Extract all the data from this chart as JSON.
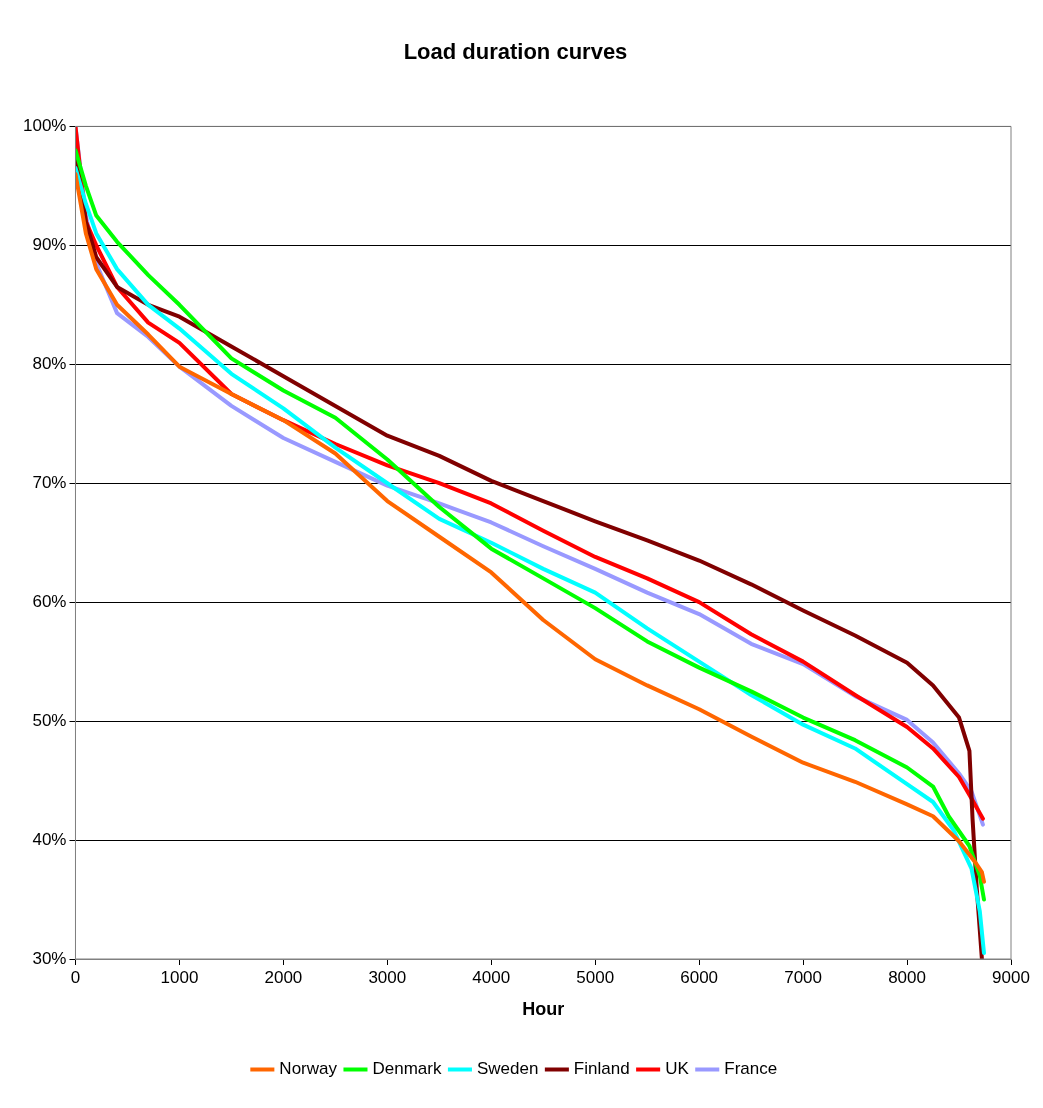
{
  "chart_data": {
    "type": "line",
    "title": "Load duration curves",
    "xlabel": "Hour",
    "xlim": [
      0,
      9000
    ],
    "xticks": [
      0,
      1000,
      2000,
      3000,
      4000,
      5000,
      6000,
      7000,
      8000,
      9000
    ],
    "ylim": [
      30,
      100
    ],
    "yticks": [
      {
        "value": 30,
        "label": "30%"
      },
      {
        "value": 40,
        "label": "40%"
      },
      {
        "value": 50,
        "label": "50%"
      },
      {
        "value": 60,
        "label": "60%"
      },
      {
        "value": 70,
        "label": "70%"
      },
      {
        "value": 80,
        "label": "80%"
      },
      {
        "value": 90,
        "label": "90%"
      },
      {
        "value": 100,
        "label": "100%"
      }
    ],
    "grid": "y",
    "legend": "bottom",
    "marker": "none",
    "line_style": "solid",
    "series": [
      {
        "name": "Norway",
        "color": "#ff6600",
        "x": [
          0,
          100,
          200,
          400,
          700,
          1000,
          1500,
          2000,
          2500,
          3000,
          3500,
          4000,
          4500,
          5000,
          5500,
          6000,
          6500,
          7000,
          7500,
          8000,
          8250,
          8500,
          8650,
          8720,
          8740
        ],
        "values": [
          96,
          91,
          88,
          85,
          82.5,
          79.8,
          77.5,
          75.3,
          72.5,
          68.5,
          65.5,
          62.5,
          58.5,
          55.2,
          53,
          51,
          48.7,
          46.5,
          44.9,
          43,
          42,
          39.9,
          38.2,
          37.3,
          36.5
        ]
      },
      {
        "name": "Denmark",
        "color": "#00ff00",
        "x": [
          0,
          100,
          200,
          400,
          700,
          1000,
          1500,
          2000,
          2500,
          3000,
          3500,
          4000,
          4500,
          5000,
          5500,
          6000,
          6500,
          7000,
          7500,
          8000,
          8250,
          8400,
          8600,
          8700,
          8740
        ],
        "values": [
          98,
          95,
          92.5,
          90.3,
          87.5,
          85,
          80.5,
          77.8,
          75.5,
          72,
          68,
          64.5,
          62,
          59.5,
          56.7,
          54.5,
          52.5,
          50.3,
          48.4,
          46.1,
          44.5,
          42,
          39.5,
          37,
          35
        ]
      },
      {
        "name": "Sweden",
        "color": "#00ffff",
        "x": [
          0,
          100,
          200,
          400,
          700,
          1000,
          1500,
          2000,
          2500,
          3000,
          3500,
          4000,
          4500,
          5000,
          5500,
          6000,
          6500,
          7000,
          7500,
          8000,
          8250,
          8450,
          8620,
          8700,
          8740
        ],
        "values": [
          96.5,
          93.5,
          91,
          88,
          85,
          83,
          79.2,
          76.3,
          73,
          70,
          67,
          65,
          62.8,
          60.8,
          57.8,
          55,
          52.2,
          49.7,
          47.7,
          44.7,
          43.2,
          40.8,
          37.6,
          34,
          30.5
        ]
      },
      {
        "name": "Finland",
        "color": "#800000",
        "x": [
          0,
          100,
          200,
          400,
          700,
          1000,
          1500,
          2000,
          2500,
          3000,
          3500,
          4000,
          4500,
          5000,
          5500,
          6000,
          6500,
          7000,
          7500,
          8000,
          8250,
          8500,
          8600,
          8630,
          8670,
          8720
        ],
        "values": [
          98,
          92,
          89,
          86.5,
          85,
          84,
          81.5,
          79,
          76.5,
          74,
          72.3,
          70.2,
          68.5,
          66.8,
          65.2,
          63.5,
          61.5,
          59.3,
          57.2,
          54.9,
          53,
          50.3,
          47.5,
          41.8,
          36,
          30
        ]
      },
      {
        "name": "UK",
        "color": "#ff0000",
        "x": [
          0,
          100,
          200,
          400,
          700,
          1000,
          1500,
          2000,
          2500,
          3000,
          3500,
          4000,
          4500,
          5000,
          5500,
          6000,
          6500,
          7000,
          7500,
          8000,
          8250,
          8500,
          8620,
          8730
        ],
        "values": [
          100,
          92,
          90,
          86.5,
          83.5,
          81.8,
          77.5,
          75.3,
          73.3,
          71.5,
          70,
          68.3,
          66,
          63.8,
          62,
          60,
          57.3,
          55,
          52.2,
          49.5,
          47.7,
          45.3,
          43.5,
          41.8
        ]
      },
      {
        "name": "France",
        "color": "#9999ff",
        "x": [
          0,
          100,
          200,
          400,
          700,
          1000,
          1500,
          2000,
          2500,
          3000,
          3500,
          4000,
          4500,
          5000,
          5500,
          6000,
          6500,
          7000,
          7500,
          8000,
          8250,
          8500,
          8620,
          8730
        ],
        "values": [
          100,
          92.5,
          88.5,
          84.3,
          82.3,
          79.8,
          76.5,
          73.8,
          71.8,
          69.8,
          68.3,
          66.7,
          64.7,
          62.8,
          60.8,
          59,
          56.5,
          54.8,
          52.1,
          50.1,
          48.2,
          45.6,
          44.1,
          41.3
        ]
      }
    ]
  }
}
